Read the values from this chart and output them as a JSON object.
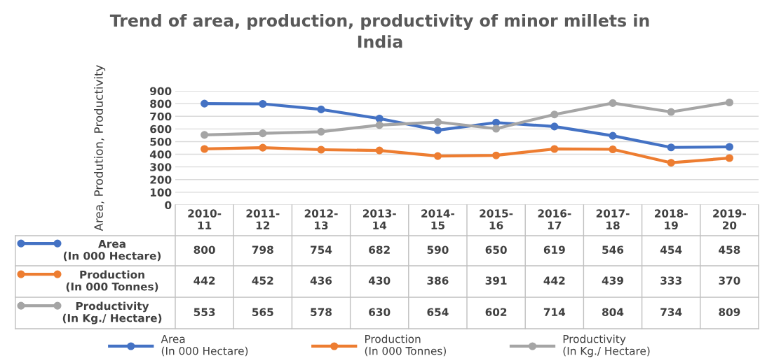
{
  "chart_data": {
    "type": "line",
    "title": "Trend of area, production, productivity of minor millets in\nIndia",
    "ylabel": "Area, Prodution, Productivity",
    "categories": [
      "2010-\n11",
      "2011-\n12",
      "2012-\n13",
      "2013-\n14",
      "2014-\n15",
      "2015-\n16",
      "2016-\n17",
      "2017-\n18",
      "2018-\n19",
      "2019-\n20"
    ],
    "series": [
      {
        "name": "Area\n(In 000 Hectare)",
        "color": "#4472c4",
        "values": [
          800,
          798,
          754,
          682,
          590,
          650,
          619,
          546,
          454,
          458
        ]
      },
      {
        "name": "Production\n(In 000 Tonnes)",
        "color": "#ed7d31",
        "values": [
          442,
          452,
          436,
          430,
          386,
          391,
          442,
          439,
          333,
          370
        ]
      },
      {
        "name": "Productivity\n(In Kg./ Hectare)",
        "color": "#a5a5a5",
        "values": [
          553,
          565,
          578,
          630,
          654,
          602,
          714,
          804,
          734,
          809
        ]
      }
    ],
    "ylim": [
      0,
      900
    ],
    "yticks": [
      0,
      100,
      200,
      300,
      400,
      500,
      600,
      700,
      800,
      900
    ],
    "grid": "y",
    "legend": "bottom",
    "marker": "circle",
    "line_style": "solid",
    "data_labels": true
  }
}
